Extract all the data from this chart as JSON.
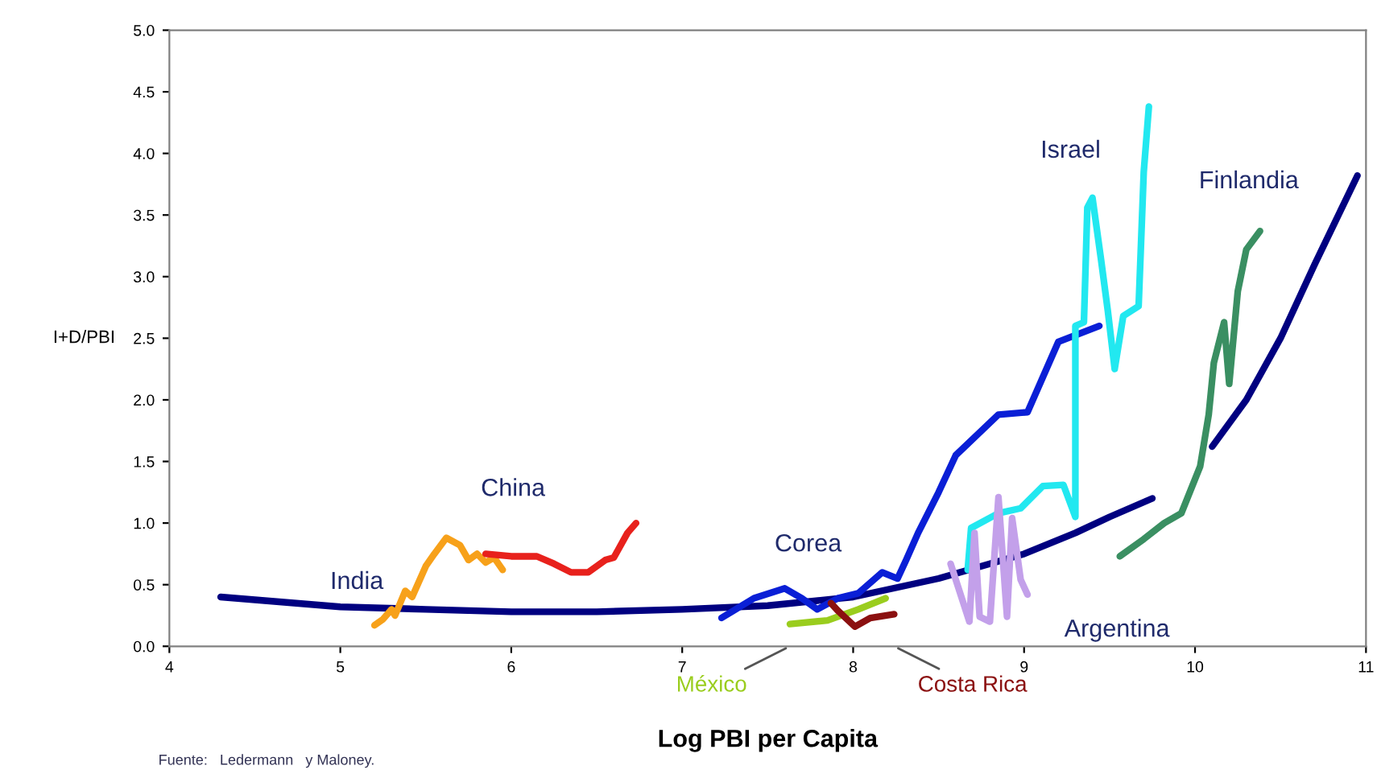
{
  "chart_data": {
    "type": "line",
    "xlabel": "Log PBI per Capita",
    "ylabel": "I+D/PBI",
    "xlim": [
      4,
      11
    ],
    "ylim": [
      0,
      5
    ],
    "xticks": [
      4,
      5,
      6,
      7,
      8,
      9,
      10,
      11
    ],
    "yticks": [
      {
        "value": 0,
        "label": "0.0"
      },
      {
        "value": 0.5,
        "label": "0.5"
      },
      {
        "value": 1,
        "label": "1.0"
      },
      {
        "value": 1.5,
        "label": "1.5"
      },
      {
        "value": 2,
        "label": "2.0"
      },
      {
        "value": 2.5,
        "label": "2.5"
      },
      {
        "value": 3,
        "label": "3.0"
      },
      {
        "value": 3.5,
        "label": "3.5"
      },
      {
        "value": 4,
        "label": "4.0"
      },
      {
        "value": 4.5,
        "label": "4.5"
      },
      {
        "value": 5,
        "label": "5.0"
      }
    ],
    "grid": false,
    "legend": false,
    "marker": "none",
    "line_style": "solid",
    "series": [
      {
        "color": "#000080",
        "x": [
          4.3,
          5,
          5.5,
          6,
          6.5,
          7,
          7.5,
          8,
          8.5,
          9,
          9.3,
          9.5,
          9.75
        ],
        "values": [
          0.4,
          0.32,
          0.3,
          0.28,
          0.28,
          0.3,
          0.33,
          0.4,
          0.55,
          0.75,
          0.92,
          1.05,
          1.2
        ]
      },
      {
        "color": "#000080",
        "x": [
          10.1,
          10.3,
          10.5,
          10.7,
          10.95
        ],
        "values": [
          1.62,
          2.0,
          2.5,
          3.1,
          3.82
        ]
      },
      {
        "name": "India",
        "color": "#f7a11a",
        "x": [
          5.2,
          5.25,
          5.3,
          5.32,
          5.38,
          5.42,
          5.5,
          5.55,
          5.62,
          5.7,
          5.75,
          5.8,
          5.85,
          5.9,
          5.95
        ],
        "values": [
          0.17,
          0.22,
          0.3,
          0.25,
          0.45,
          0.4,
          0.65,
          0.75,
          0.88,
          0.82,
          0.7,
          0.75,
          0.68,
          0.72,
          0.62
        ]
      },
      {
        "name": "China",
        "color": "#e8211c",
        "x": [
          5.85,
          6.0,
          6.15,
          6.25,
          6.35,
          6.45,
          6.55,
          6.6,
          6.68,
          6.73
        ],
        "values": [
          0.75,
          0.73,
          0.73,
          0.67,
          0.6,
          0.6,
          0.7,
          0.72,
          0.92,
          1.0
        ]
      },
      {
        "name": "Corea",
        "color": "#0a1fd6",
        "x": [
          7.23,
          7.42,
          7.6,
          7.7,
          7.79,
          7.91,
          8.03,
          8.17,
          8.26,
          8.31,
          8.38,
          8.5,
          8.6,
          8.85,
          9.02,
          9.2,
          9.44
        ],
        "values": [
          0.23,
          0.39,
          0.47,
          0.39,
          0.3,
          0.39,
          0.43,
          0.6,
          0.55,
          0.7,
          0.92,
          1.25,
          1.55,
          1.88,
          1.9,
          2.47,
          2.6
        ]
      },
      {
        "name": "Israel",
        "color": "#22e8f0",
        "x": [
          8.67,
          8.69,
          8.85,
          8.98,
          9.11,
          9.23,
          9.3,
          9.3,
          9.35,
          9.37,
          9.4,
          9.45,
          9.49,
          9.53,
          9.58,
          9.67,
          9.7,
          9.73
        ],
        "values": [
          0.62,
          0.96,
          1.08,
          1.12,
          1.3,
          1.31,
          1.05,
          2.6,
          2.63,
          3.56,
          3.64,
          3.14,
          2.72,
          2.25,
          2.68,
          2.76,
          3.85,
          4.38
        ]
      },
      {
        "name": "Argentina",
        "color": "#c3a0ea",
        "x": [
          8.57,
          8.68,
          8.71,
          8.74,
          8.8,
          8.85,
          8.9,
          8.93,
          8.98,
          9.02
        ],
        "values": [
          0.67,
          0.2,
          0.92,
          0.24,
          0.2,
          1.21,
          0.24,
          1.04,
          0.54,
          0.42
        ]
      },
      {
        "name": "Finlandia",
        "color": "#3a8f62",
        "x": [
          9.56,
          9.7,
          9.82,
          9.92,
          10.03,
          10.08,
          10.11,
          10.17,
          10.2,
          10.25,
          10.3,
          10.38
        ],
        "values": [
          0.73,
          0.87,
          1.0,
          1.08,
          1.46,
          1.88,
          2.3,
          2.63,
          2.13,
          2.88,
          3.22,
          3.37
        ]
      },
      {
        "name": "México",
        "color": "#9acd1e",
        "x": [
          7.63,
          7.85,
          8.03,
          8.19
        ],
        "values": [
          0.18,
          0.21,
          0.3,
          0.39
        ]
      },
      {
        "name": "Costa Rica",
        "color": "#8b1010",
        "x": [
          7.87,
          7.91,
          8.01,
          8.1,
          8.24
        ],
        "values": [
          0.35,
          0.29,
          0.16,
          0.23,
          0.26
        ]
      }
    ],
    "annotations": [
      "Fuente:   Ledermann   y Maloney."
    ]
  }
}
